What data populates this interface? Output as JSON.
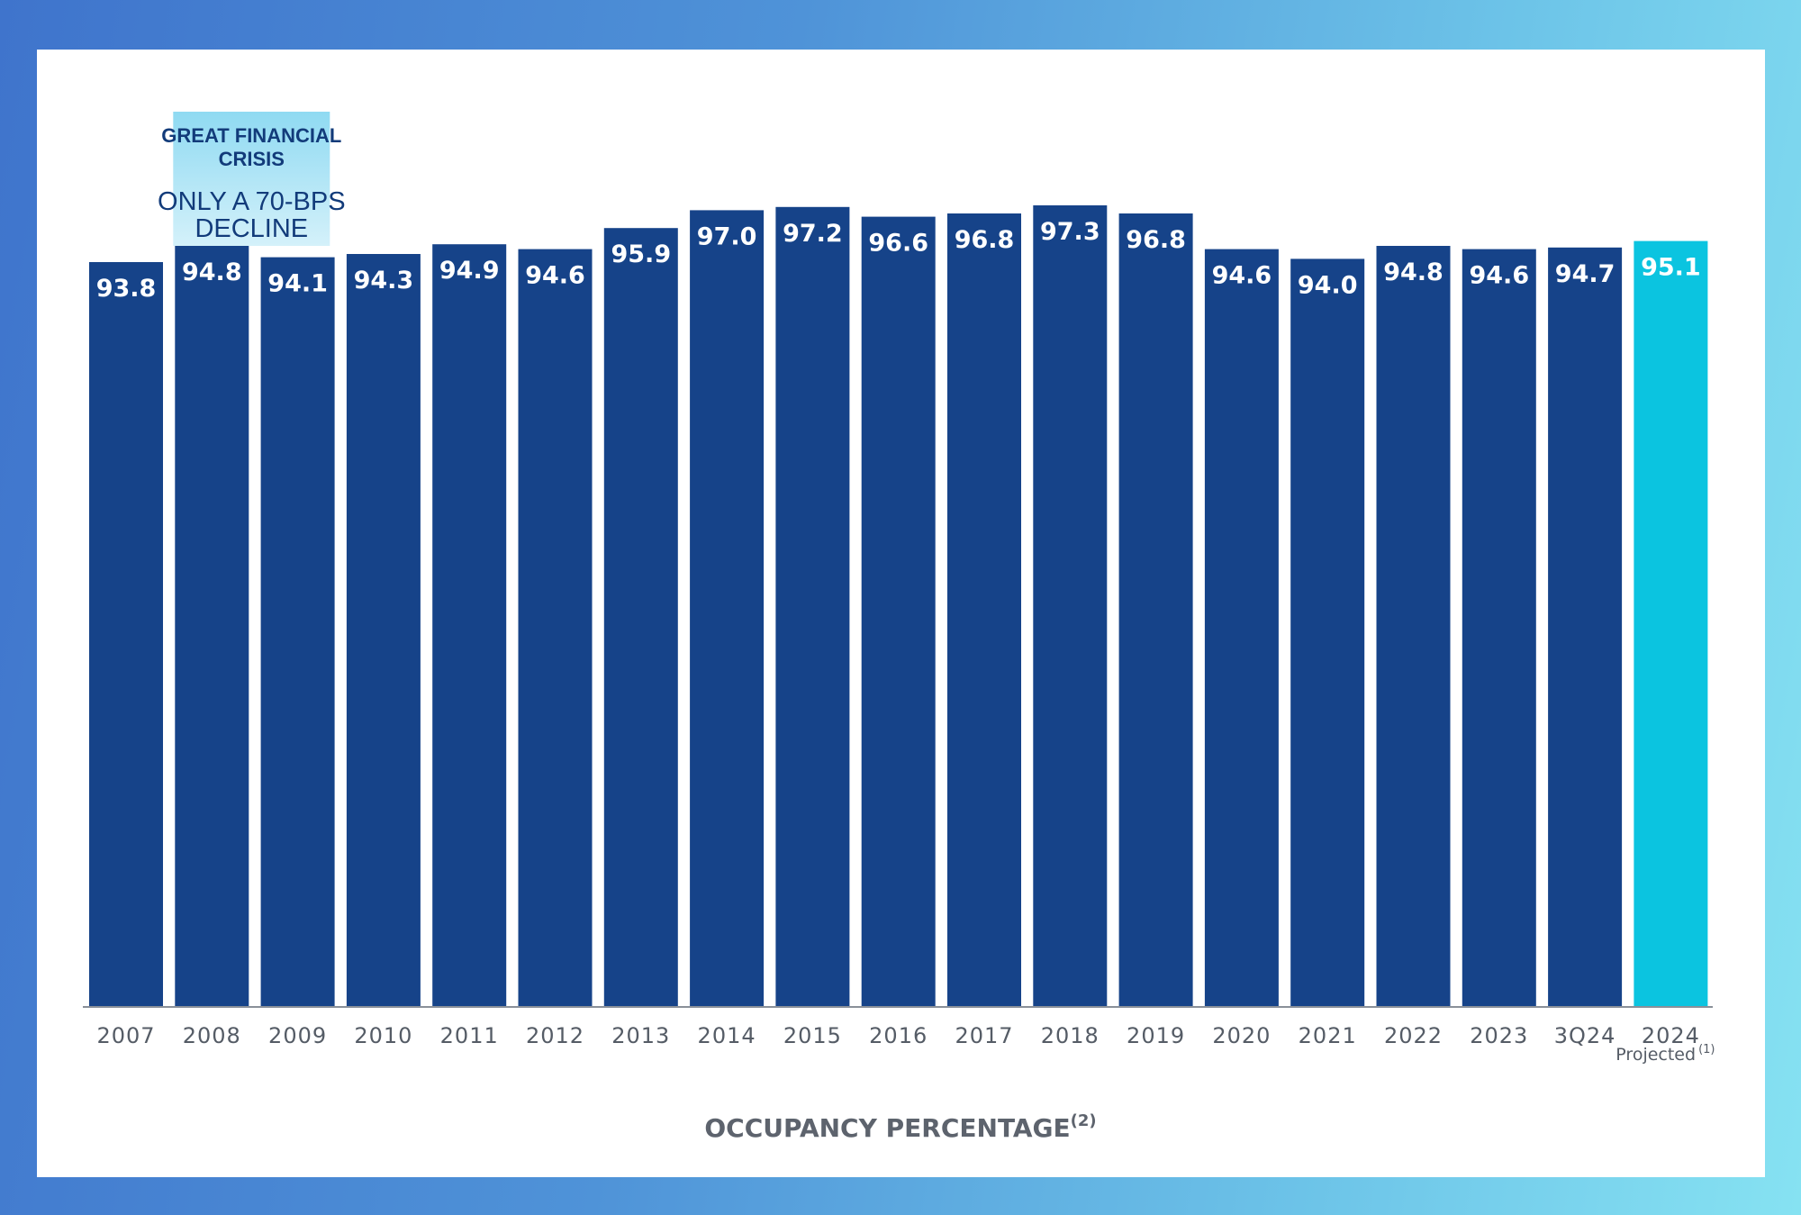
{
  "colors": {
    "bar": "#164389",
    "projected_bar": "#0bc4e0",
    "annotation_bg_top": "#8fdaf2",
    "annotation_bg_bottom": "#d4f1fa",
    "axis_text": "#555c66"
  },
  "chart_data": {
    "type": "bar",
    "title": "",
    "xlabel": "OCCUPANCY PERCENTAGE",
    "xlabel_superscript": "(2)",
    "ylabel": "",
    "ylim": [
      0,
      100
    ],
    "categories": [
      "2007",
      "2008",
      "2009",
      "2010",
      "2011",
      "2012",
      "2013",
      "2014",
      "2015",
      "2016",
      "2017",
      "2018",
      "2019",
      "2020",
      "2021",
      "2022",
      "2023",
      "3Q24",
      "2024"
    ],
    "values": [
      93.8,
      94.8,
      94.1,
      94.3,
      94.9,
      94.6,
      95.9,
      97.0,
      97.2,
      96.6,
      96.8,
      97.3,
      96.8,
      94.6,
      94.0,
      94.8,
      94.6,
      94.7,
      95.1
    ],
    "value_labels": [
      "93.8",
      "94.8",
      "94.1",
      "94.3",
      "94.9",
      "94.6",
      "95.9",
      "97.0",
      "97.2",
      "96.6",
      "96.8",
      "97.3",
      "96.8",
      "94.6",
      "94.0",
      "94.8",
      "94.6",
      "94.7",
      "95.1"
    ],
    "highlight_index": 18,
    "highlight_sublabel": "Projected",
    "highlight_superscript": "(1)",
    "annotation": {
      "category_index": 1,
      "title_lines": [
        "GREAT FINANCIAL",
        "CRISIS"
      ],
      "body_lines": [
        "ONLY A 70-BPS",
        "DECLINE"
      ]
    }
  }
}
